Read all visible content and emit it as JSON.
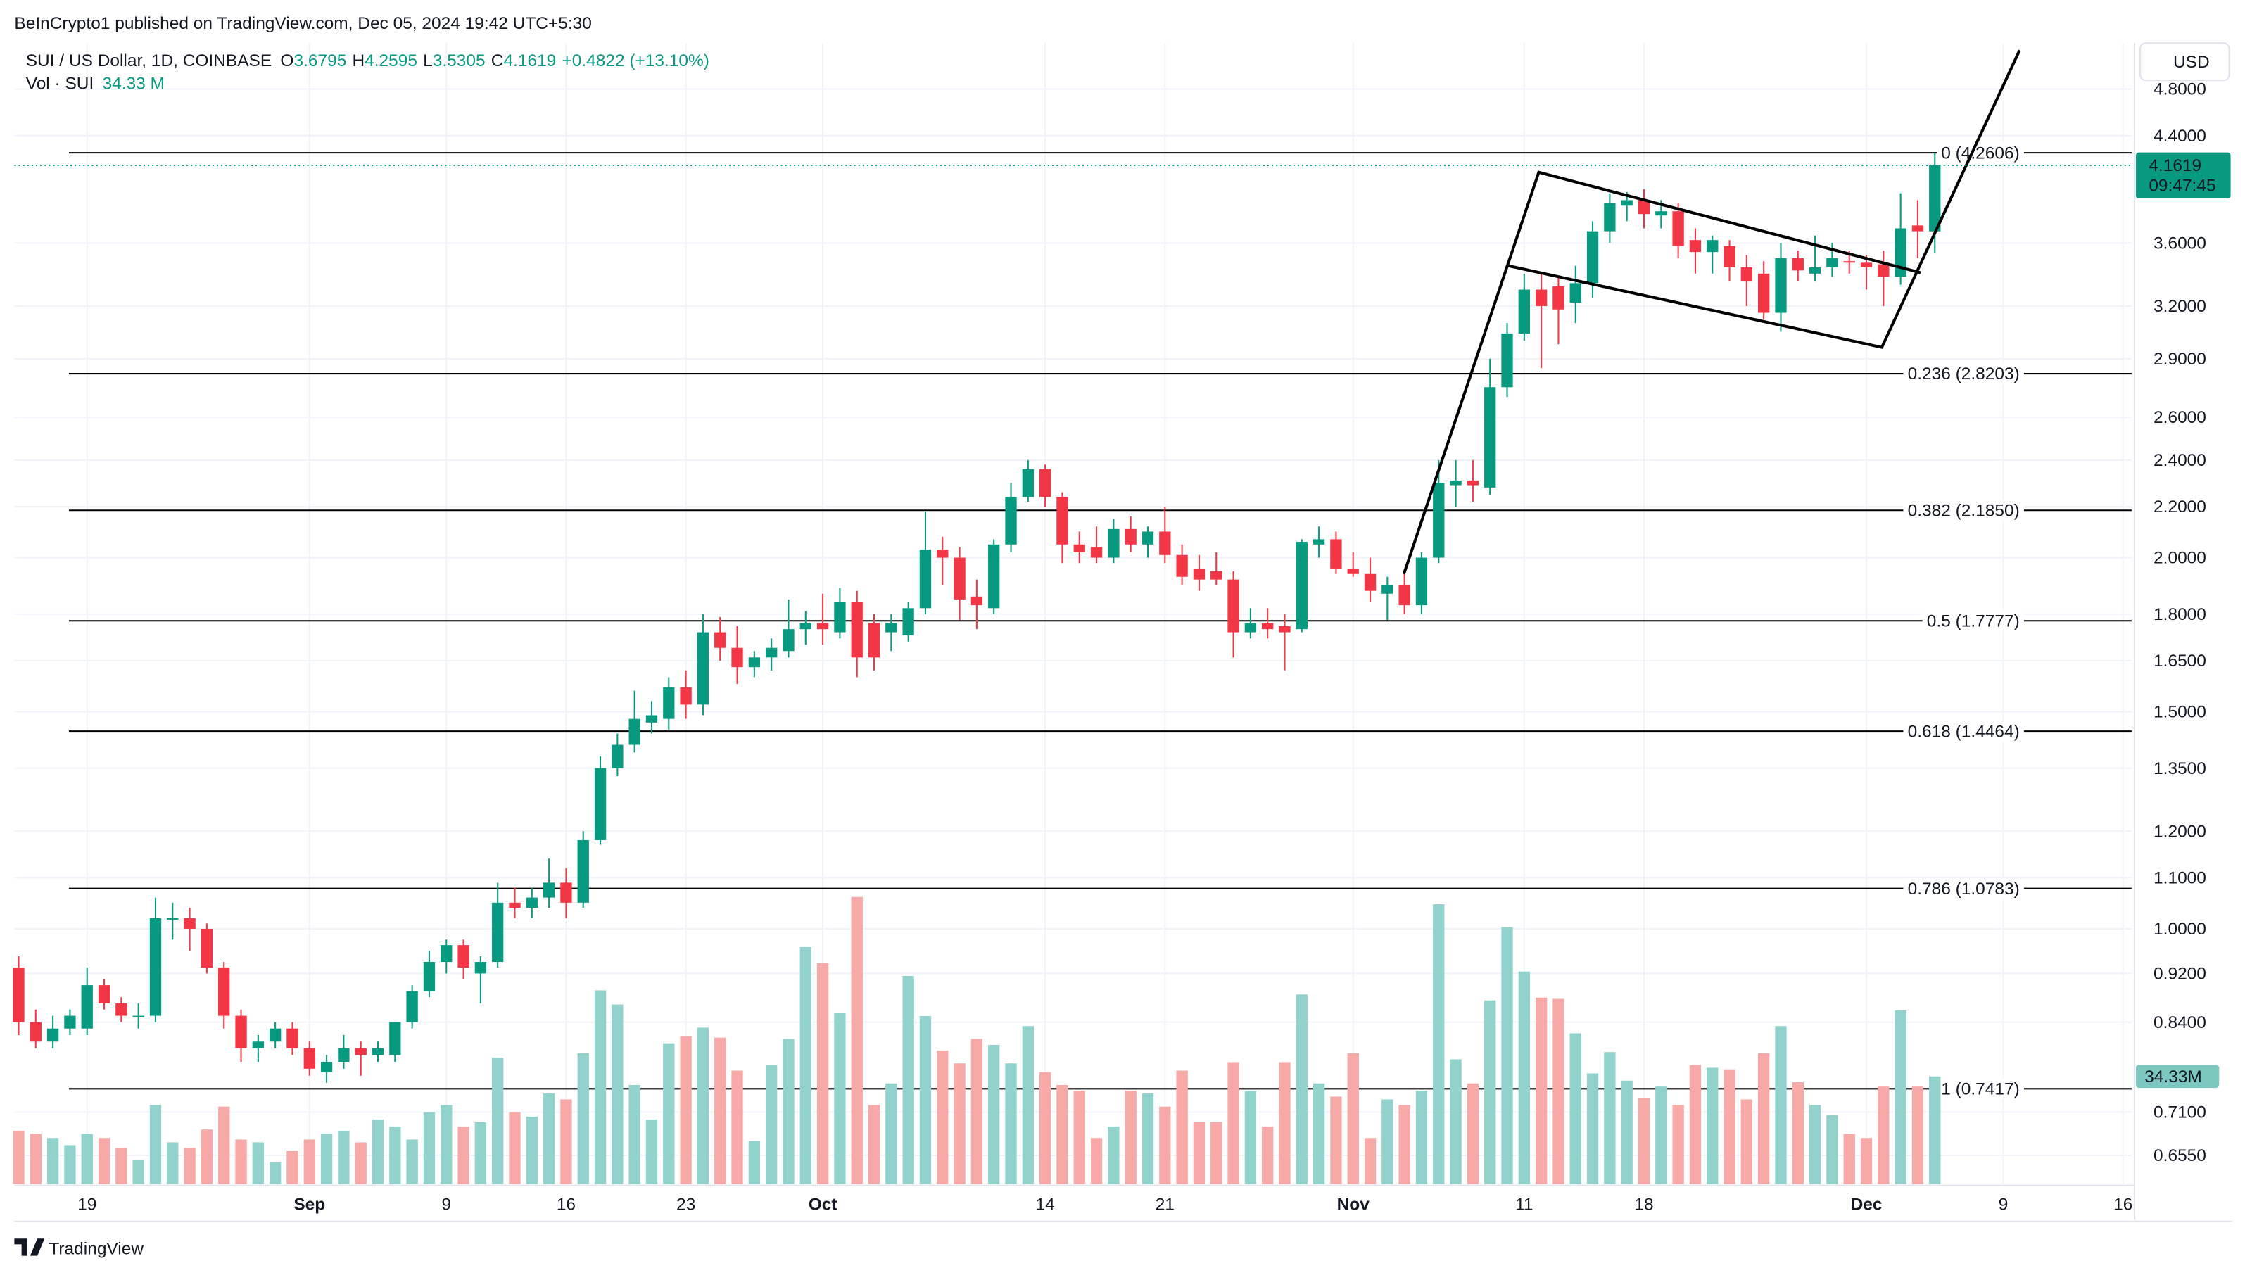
{
  "header": {
    "publisher": "BeInCrypto1 published on TradingView.com, Dec 05, 2024 19:42 UTC+5:30"
  },
  "legend": {
    "symbol": "SUI / US Dollar, 1D, COINBASE",
    "o": "O",
    "open": 3.6795,
    "h": "H",
    "high": 4.2595,
    "l": "L",
    "low": 3.5305,
    "c": "C",
    "close": 4.1619,
    "change": "+0.4822 (+13.10%)",
    "volume_name": "Vol · SUI",
    "volume": "34.33 M"
  },
  "currency": "USD",
  "price_tag": {
    "price": 4.1619,
    "countdown": "09:47:45"
  },
  "volume_tag": "34.33M",
  "footer": {
    "brand": "TradingView"
  },
  "chart_data": {
    "type": "candlestick",
    "log_scale": true,
    "grid": true,
    "up_color": "#089981",
    "down_color": "#f23645",
    "volume_up_color": "#92d2cc",
    "volume_down_color": "#f7a9a7",
    "xlim": [
      -0.25,
      123.5
    ],
    "xticks": [
      {
        "value": 4,
        "label": "19"
      },
      {
        "value": 17,
        "label": "Sep"
      },
      {
        "value": 25,
        "label": "9"
      },
      {
        "value": 32,
        "label": "16"
      },
      {
        "value": 39,
        "label": "23"
      },
      {
        "value": 47,
        "label": "Oct"
      },
      {
        "value": 60,
        "label": "14"
      },
      {
        "value": 67,
        "label": "21"
      },
      {
        "value": 78,
        "label": "Nov"
      },
      {
        "value": 88,
        "label": "11"
      },
      {
        "value": 95,
        "label": "18"
      },
      {
        "value": 108,
        "label": "Dec"
      },
      {
        "value": 116,
        "label": "9"
      },
      {
        "value": 123,
        "label": "16"
      }
    ],
    "ylim": [
      0.6208,
      5.23
    ],
    "yticks": [
      {
        "value": 4.8,
        "label": "4.8000"
      },
      {
        "value": 4.4,
        "label": "4.4000"
      },
      {
        "value": 3.6,
        "label": "3.6000"
      },
      {
        "value": 3.2,
        "label": "3.2000"
      },
      {
        "value": 2.9,
        "label": "2.9000"
      },
      {
        "value": 2.6,
        "label": "2.6000"
      },
      {
        "value": 2.4,
        "label": "2.4000"
      },
      {
        "value": 2.2,
        "label": "2.2000"
      },
      {
        "value": 2.0,
        "label": "2.0000"
      },
      {
        "value": 1.8,
        "label": "1.8000"
      },
      {
        "value": 1.65,
        "label": "1.6500"
      },
      {
        "value": 1.5,
        "label": "1.5000"
      },
      {
        "value": 1.35,
        "label": "1.3500"
      },
      {
        "value": 1.2,
        "label": "1.2000"
      },
      {
        "value": 1.1,
        "label": "1.1000"
      },
      {
        "value": 1.0,
        "label": "1.0000"
      },
      {
        "value": 0.92,
        "label": "0.9200"
      },
      {
        "value": 0.84,
        "label": "0.8400"
      },
      {
        "value": 0.71,
        "label": "0.7100"
      },
      {
        "value": 0.655,
        "label": "0.6550"
      }
    ],
    "open": [
      0.93,
      0.84,
      0.81,
      0.83,
      0.83,
      0.9,
      0.87,
      0.85,
      0.85,
      1.02,
      1.02,
      1.0,
      0.93,
      0.85,
      0.8,
      0.81,
      0.83,
      0.8,
      0.765,
      0.78,
      0.8,
      0.79,
      0.79,
      0.84,
      0.89,
      0.94,
      0.97,
      0.92,
      0.94,
      1.05,
      1.04,
      1.06,
      1.09,
      1.05,
      1.18,
      1.35,
      1.41,
      1.47,
      1.48,
      1.57,
      1.52,
      1.74,
      1.69,
      1.63,
      1.66,
      1.68,
      1.75,
      1.77,
      1.74,
      1.84,
      1.77,
      1.74,
      1.73,
      1.82,
      2.03,
      2.0,
      1.86,
      1.82,
      2.05,
      2.24,
      2.36,
      2.24,
      2.05,
      2.04,
      2.0,
      2.11,
      2.05,
      2.1,
      2.01,
      1.96,
      1.95,
      1.92,
      1.74,
      1.77,
      1.76,
      1.75,
      2.05,
      2.07,
      1.96,
      1.94,
      1.87,
      1.9,
      1.83,
      2.0,
      2.29,
      2.31,
      2.28,
      2.75,
      3.04,
      3.3,
      3.32,
      3.22,
      3.34,
      3.68,
      3.86,
      3.9,
      3.79,
      3.82,
      3.62,
      3.54,
      3.58,
      3.44,
      3.4,
      3.16,
      3.5,
      3.4,
      3.44,
      3.48,
      3.47,
      3.46,
      3.38,
      3.72,
      3.6795
    ],
    "high": [
      0.95,
      0.86,
      0.85,
      0.86,
      0.93,
      0.91,
      0.88,
      0.87,
      1.06,
      1.05,
      1.04,
      1.01,
      0.94,
      0.86,
      0.82,
      0.84,
      0.84,
      0.81,
      0.79,
      0.82,
      0.81,
      0.81,
      0.84,
      0.9,
      0.96,
      0.98,
      0.98,
      0.95,
      1.09,
      1.08,
      1.08,
      1.14,
      1.12,
      1.2,
      1.38,
      1.44,
      1.56,
      1.53,
      1.6,
      1.62,
      1.8,
      1.79,
      1.76,
      1.68,
      1.72,
      1.85,
      1.81,
      1.87,
      1.89,
      1.88,
      1.8,
      1.8,
      1.84,
      2.18,
      2.08,
      2.04,
      1.92,
      2.07,
      2.3,
      2.4,
      2.38,
      2.26,
      2.1,
      2.12,
      2.15,
      2.16,
      2.12,
      2.2,
      2.05,
      2.01,
      2.02,
      1.95,
      1.82,
      1.82,
      1.8,
      2.07,
      2.12,
      2.1,
      2.02,
      2.0,
      1.93,
      1.96,
      2.02,
      2.4,
      2.4,
      2.4,
      2.9,
      3.1,
      3.4,
      3.4,
      3.38,
      3.45,
      3.75,
      3.95,
      3.96,
      3.98,
      3.9,
      3.88,
      3.7,
      3.65,
      3.62,
      3.52,
      3.48,
      3.6,
      3.55,
      3.65,
      3.6,
      3.55,
      3.52,
      3.55,
      3.95,
      3.9,
      4.2595
    ],
    "low": [
      0.82,
      0.8,
      0.8,
      0.82,
      0.82,
      0.86,
      0.84,
      0.83,
      0.84,
      0.98,
      0.96,
      0.92,
      0.83,
      0.78,
      0.78,
      0.8,
      0.79,
      0.76,
      0.75,
      0.77,
      0.76,
      0.78,
      0.78,
      0.83,
      0.88,
      0.92,
      0.91,
      0.87,
      0.93,
      1.02,
      1.02,
      1.04,
      1.02,
      1.04,
      1.17,
      1.33,
      1.39,
      1.44,
      1.45,
      1.48,
      1.49,
      1.65,
      1.58,
      1.6,
      1.62,
      1.66,
      1.7,
      1.7,
      1.72,
      1.6,
      1.62,
      1.68,
      1.71,
      1.8,
      1.9,
      1.78,
      1.75,
      1.8,
      2.02,
      2.22,
      2.2,
      1.98,
      1.98,
      1.98,
      1.98,
      2.02,
      2.0,
      1.98,
      1.9,
      1.88,
      1.9,
      1.66,
      1.72,
      1.72,
      1.62,
      1.74,
      2.0,
      1.94,
      1.93,
      1.84,
      1.78,
      1.8,
      1.8,
      1.98,
      2.2,
      2.22,
      2.25,
      2.7,
      3.0,
      2.85,
      2.98,
      3.1,
      3.25,
      3.6,
      3.75,
      3.7,
      3.7,
      3.5,
      3.4,
      3.4,
      3.35,
      3.2,
      3.12,
      3.05,
      3.35,
      3.35,
      3.38,
      3.4,
      3.3,
      3.2,
      3.33,
      3.5,
      3.5305
    ],
    "close": [
      0.84,
      0.81,
      0.83,
      0.85,
      0.9,
      0.87,
      0.85,
      0.85,
      1.02,
      1.02,
      1.0,
      0.93,
      0.85,
      0.8,
      0.81,
      0.83,
      0.8,
      0.77,
      0.78,
      0.8,
      0.79,
      0.8,
      0.84,
      0.89,
      0.94,
      0.97,
      0.93,
      0.94,
      1.05,
      1.04,
      1.06,
      1.09,
      1.05,
      1.18,
      1.35,
      1.41,
      1.48,
      1.49,
      1.57,
      1.52,
      1.74,
      1.69,
      1.63,
      1.66,
      1.69,
      1.75,
      1.77,
      1.75,
      1.84,
      1.66,
      1.66,
      1.77,
      1.82,
      2.03,
      2.0,
      1.85,
      1.83,
      2.05,
      2.24,
      2.36,
      2.24,
      2.05,
      2.02,
      2.0,
      2.11,
      2.05,
      2.1,
      2.01,
      1.93,
      1.92,
      1.92,
      1.74,
      1.77,
      1.75,
      1.74,
      2.06,
      2.07,
      1.96,
      1.94,
      1.88,
      1.9,
      1.83,
      2.0,
      2.3,
      2.31,
      2.29,
      2.75,
      3.04,
      3.3,
      3.2,
      3.18,
      3.34,
      3.68,
      3.88,
      3.9,
      3.8,
      3.82,
      3.58,
      3.54,
      3.62,
      3.44,
      3.35,
      3.16,
      3.5,
      3.42,
      3.44,
      3.5,
      3.47,
      3.44,
      3.38,
      3.7,
      3.68,
      4.1619
    ],
    "volume": [
      17,
      16,
      14.7,
      12.4,
      16,
      14.7,
      11.5,
      7.8,
      25.2,
      13.3,
      11.5,
      17.4,
      24.7,
      14.2,
      13.3,
      6.9,
      10.5,
      14.2,
      16,
      17,
      13.3,
      20.6,
      18.3,
      14.2,
      22.9,
      25.2,
      18.3,
      19.7,
      40.3,
      22.9,
      21.5,
      28.9,
      27,
      41.7,
      61.8,
      57.3,
      31.6,
      20.6,
      44.9,
      47.2,
      49.9,
      46.7,
      36.2,
      13.7,
      38,
      46.3,
      75.6,
      70.5,
      54.5,
      91.6,
      25.2,
      32.1,
      66.4,
      53.6,
      42.6,
      38.5,
      46.3,
      44.4,
      38.5,
      50.4,
      35.7,
      31.6,
      29.8,
      14.7,
      18.3,
      29.8,
      28.9,
      24.7,
      36.2,
      19.7,
      19.7,
      38.9,
      29.8,
      18.3,
      38.9,
      60.5,
      32.1,
      27.9,
      41.7,
      14.7,
      27,
      25.2,
      29.8,
      89.3,
      39.8,
      32.1,
      58.6,
      82,
      67.8,
      59.5,
      59.1,
      48.1,
      35.3,
      42.1,
      33,
      27.5,
      31.1,
      25.2,
      38,
      37.1,
      36.6,
      27,
      41.7,
      50.4,
      32.5,
      25.2,
      22,
      16,
      14.7,
      31.1,
      55.4,
      31.1,
      34.33
    ],
    "fib_levels": [
      {
        "value": 4.2606,
        "label": "0 (4.2606)"
      },
      {
        "value": 2.8203,
        "label": "0.236 (2.8203)"
      },
      {
        "value": 2.185,
        "label": "0.382 (2.1850)"
      },
      {
        "value": 1.7777,
        "label": "0.5 (1.7777)"
      },
      {
        "value": 1.4464,
        "label": "0.618 (1.4464)"
      },
      {
        "value": 1.0783,
        "label": "0.786 (1.0783)"
      },
      {
        "value": 0.7417,
        "label": "1 (0.7417)"
      }
    ]
  }
}
